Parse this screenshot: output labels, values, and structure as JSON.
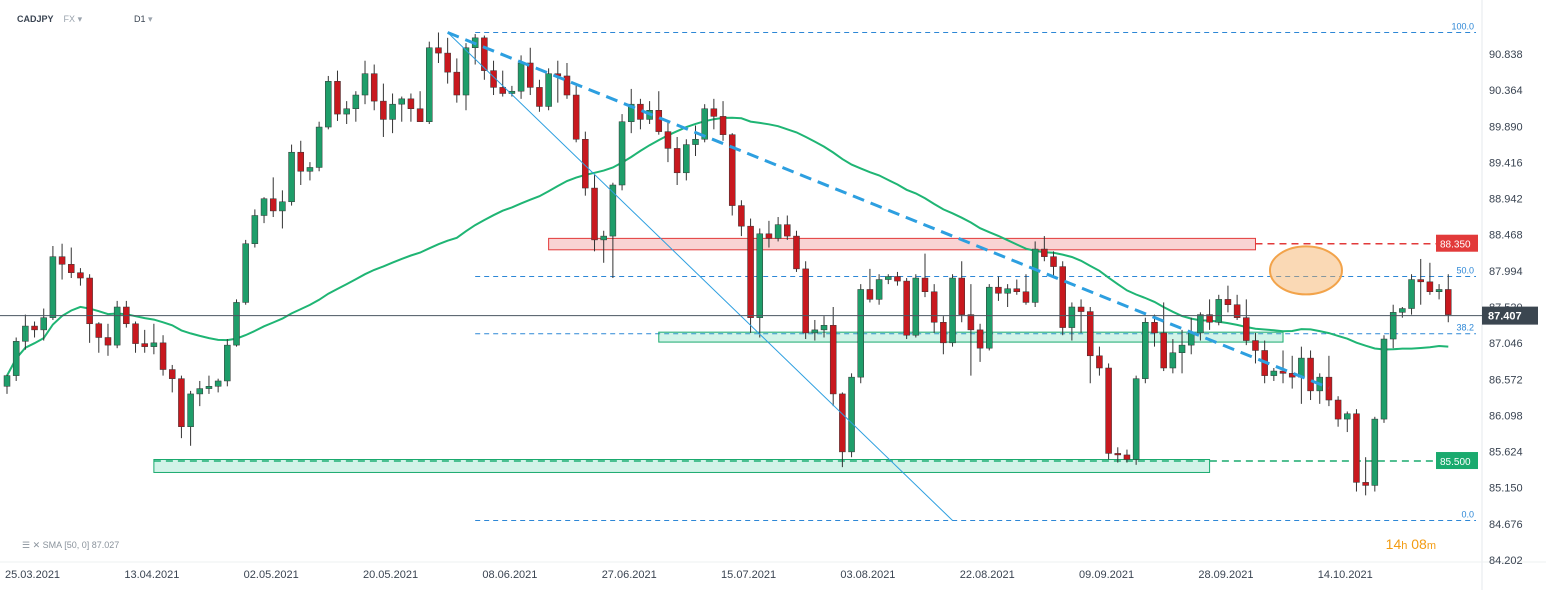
{
  "header": {
    "symbol": "CADJPY",
    "market": "FX",
    "timeframe": "D1"
  },
  "indicator": {
    "name": "SMA",
    "params": "[50, 0]",
    "value": "87.027"
  },
  "timer": {
    "hours": "14",
    "hours_unit": "h",
    "minutes": "08",
    "minutes_unit": "m"
  },
  "colors": {
    "bull": "#1e9e6a",
    "bear": "#c8181e",
    "sma": "#1fb574",
    "trend": "#2d9fe0",
    "fib": "#2d87d6",
    "resistance": "#e23a3a",
    "support": "#1aaa6e",
    "highlight": "#f2a34a"
  },
  "chart_data": {
    "type": "candlestick",
    "ylim": [
      84.202,
      91.2
    ],
    "y_ticks": [
      "90.838",
      "90.364",
      "89.890",
      "89.416",
      "88.942",
      "88.468",
      "87.994",
      "87.520",
      "87.046",
      "86.572",
      "86.098",
      "85.624",
      "85.150",
      "84.676",
      "84.202"
    ],
    "x_ticks": [
      "25.03.2021",
      "13.04.2021",
      "02.05.2021",
      "20.05.2021",
      "08.06.2021",
      "27.06.2021",
      "15.07.2021",
      "03.08.2021",
      "22.08.2021",
      "09.09.2021",
      "28.09.2021",
      "14.10.2021"
    ],
    "x_tick_index": [
      0,
      13,
      26,
      39,
      52,
      65,
      78,
      91,
      104,
      117,
      130,
      143
    ],
    "current_price": "87.407",
    "levels": [
      {
        "label": "88.350",
        "value": 88.35,
        "kind": "resistance"
      },
      {
        "label": "85.500",
        "value": 85.5,
        "kind": "support"
      }
    ],
    "fibonacci": [
      {
        "label": "100.0",
        "value": 91.12
      },
      {
        "label": "50.0",
        "value": 87.92
      },
      {
        "label": "38.2",
        "value": 87.17
      },
      {
        "label": "0.0",
        "value": 84.72
      }
    ],
    "zones": [
      {
        "name": "resistance-zone",
        "from_index": 59,
        "to_index": 136,
        "low": 88.27,
        "high": 88.42
      },
      {
        "name": "support-zone-middle",
        "from_index": 71,
        "to_index": 139,
        "low": 87.06,
        "high": 87.19
      },
      {
        "name": "support-zone-lower",
        "from_index": 16,
        "to_index": 131,
        "low": 85.35,
        "high": 85.52
      }
    ],
    "trendline_dashed": {
      "from": [
        48,
        91.12
      ],
      "to": [
        144,
        86.46
      ]
    },
    "trendline_thin": {
      "from": [
        48,
        91.12
      ],
      "to": [
        103,
        84.72
      ]
    },
    "candles": [
      [
        86.48,
        86.63,
        86.38,
        86.62
      ],
      [
        86.62,
        87.12,
        86.55,
        87.07
      ],
      [
        87.07,
        87.42,
        86.96,
        87.27
      ],
      [
        87.27,
        87.33,
        87.12,
        87.22
      ],
      [
        87.22,
        87.5,
        87.08,
        87.38
      ],
      [
        87.38,
        88.32,
        87.35,
        88.18
      ],
      [
        88.18,
        88.35,
        87.88,
        88.08
      ],
      [
        88.08,
        88.3,
        87.9,
        87.97
      ],
      [
        87.97,
        88.03,
        87.8,
        87.9
      ],
      [
        87.9,
        87.95,
        87.05,
        87.3
      ],
      [
        87.3,
        87.32,
        86.92,
        87.12
      ],
      [
        87.12,
        87.3,
        86.88,
        87.02
      ],
      [
        87.02,
        87.6,
        86.98,
        87.52
      ],
      [
        87.52,
        87.6,
        87.25,
        87.3
      ],
      [
        87.3,
        87.33,
        86.92,
        87.04
      ],
      [
        87.04,
        87.22,
        86.92,
        87.0
      ],
      [
        87.0,
        87.3,
        86.9,
        87.05
      ],
      [
        87.05,
        87.15,
        86.62,
        86.7
      ],
      [
        86.7,
        86.76,
        86.4,
        86.58
      ],
      [
        86.58,
        86.62,
        85.8,
        85.95
      ],
      [
        85.95,
        86.42,
        85.7,
        86.38
      ],
      [
        86.38,
        86.55,
        86.22,
        86.45
      ],
      [
        86.45,
        86.62,
        86.38,
        86.48
      ],
      [
        86.48,
        86.58,
        86.4,
        86.55
      ],
      [
        86.55,
        87.1,
        86.48,
        87.02
      ],
      [
        87.02,
        87.62,
        87.0,
        87.58
      ],
      [
        87.58,
        88.4,
        87.55,
        88.35
      ],
      [
        88.35,
        88.8,
        88.3,
        88.72
      ],
      [
        88.72,
        88.96,
        88.62,
        88.94
      ],
      [
        88.94,
        89.22,
        88.7,
        88.78
      ],
      [
        88.78,
        89.05,
        88.55,
        88.9
      ],
      [
        88.9,
        89.65,
        88.85,
        89.55
      ],
      [
        89.55,
        89.7,
        89.12,
        89.3
      ],
      [
        89.3,
        89.42,
        89.18,
        89.35
      ],
      [
        89.35,
        89.95,
        89.3,
        89.88
      ],
      [
        89.88,
        90.55,
        89.85,
        90.48
      ],
      [
        90.48,
        90.62,
        89.96,
        90.05
      ],
      [
        90.05,
        90.22,
        89.92,
        90.12
      ],
      [
        90.12,
        90.35,
        89.95,
        90.3
      ],
      [
        90.3,
        90.75,
        90.18,
        90.58
      ],
      [
        90.58,
        90.7,
        90.1,
        90.22
      ],
      [
        90.22,
        90.45,
        89.75,
        89.98
      ],
      [
        89.98,
        90.32,
        89.8,
        90.18
      ],
      [
        90.18,
        90.28,
        89.95,
        90.25
      ],
      [
        90.25,
        90.32,
        89.95,
        90.12
      ],
      [
        90.12,
        90.35,
        89.95,
        89.95
      ],
      [
        89.95,
        91.0,
        89.92,
        90.92
      ],
      [
        90.92,
        91.12,
        90.72,
        90.85
      ],
      [
        90.85,
        91.05,
        90.45,
        90.6
      ],
      [
        90.6,
        90.78,
        90.2,
        90.3
      ],
      [
        90.3,
        90.98,
        90.1,
        90.92
      ],
      [
        90.92,
        91.1,
        90.7,
        91.05
      ],
      [
        91.05,
        91.08,
        90.5,
        90.62
      ],
      [
        90.62,
        90.75,
        90.3,
        90.4
      ],
      [
        90.4,
        90.62,
        90.28,
        90.32
      ],
      [
        90.32,
        90.42,
        90.28,
        90.35
      ],
      [
        90.35,
        90.82,
        90.25,
        90.72
      ],
      [
        90.72,
        90.92,
        90.3,
        90.4
      ],
      [
        90.4,
        90.5,
        90.08,
        90.15
      ],
      [
        90.15,
        90.65,
        90.1,
        90.58
      ],
      [
        90.58,
        90.75,
        90.2,
        90.55
      ],
      [
        90.55,
        90.72,
        90.25,
        90.3
      ],
      [
        90.3,
        90.42,
        89.68,
        89.72
      ],
      [
        89.72,
        89.82,
        88.98,
        89.08
      ],
      [
        89.08,
        89.25,
        88.25,
        88.4
      ],
      [
        88.4,
        88.52,
        88.1,
        88.45
      ],
      [
        88.45,
        89.15,
        87.9,
        89.12
      ],
      [
        89.12,
        90.05,
        89.05,
        89.95
      ],
      [
        89.95,
        90.38,
        89.8,
        90.18
      ],
      [
        90.18,
        90.25,
        89.85,
        89.98
      ],
      [
        89.98,
        90.22,
        89.92,
        90.1
      ],
      [
        90.1,
        90.35,
        89.78,
        89.82
      ],
      [
        89.82,
        89.95,
        89.42,
        89.6
      ],
      [
        89.6,
        89.75,
        89.12,
        89.28
      ],
      [
        89.28,
        89.72,
        89.18,
        89.65
      ],
      [
        89.65,
        89.9,
        89.5,
        89.72
      ],
      [
        89.72,
        90.18,
        89.68,
        90.12
      ],
      [
        90.12,
        90.25,
        89.85,
        90.02
      ],
      [
        90.02,
        90.22,
        89.7,
        89.78
      ],
      [
        89.78,
        89.8,
        88.72,
        88.85
      ],
      [
        88.85,
        88.92,
        88.45,
        88.58
      ],
      [
        88.58,
        88.68,
        87.18,
        87.38
      ],
      [
        87.38,
        88.55,
        87.12,
        88.48
      ],
      [
        88.48,
        88.65,
        88.3,
        88.42
      ],
      [
        88.42,
        88.7,
        88.38,
        88.6
      ],
      [
        88.6,
        88.72,
        88.4,
        88.45
      ],
      [
        88.45,
        88.52,
        87.98,
        88.02
      ],
      [
        88.02,
        88.12,
        87.1,
        87.18
      ],
      [
        87.18,
        87.35,
        87.08,
        87.22
      ],
      [
        87.22,
        87.4,
        87.12,
        87.28
      ],
      [
        87.28,
        87.52,
        86.22,
        86.38
      ],
      [
        86.38,
        86.4,
        85.42,
        85.62
      ],
      [
        85.62,
        86.65,
        85.55,
        86.6
      ],
      [
        86.6,
        87.82,
        86.52,
        87.75
      ],
      [
        87.75,
        88.02,
        87.58,
        87.62
      ],
      [
        87.62,
        87.95,
        87.55,
        87.88
      ],
      [
        87.88,
        87.95,
        87.82,
        87.92
      ],
      [
        87.92,
        87.98,
        87.8,
        87.86
      ],
      [
        87.86,
        87.9,
        87.1,
        87.15
      ],
      [
        87.15,
        87.95,
        87.12,
        87.9
      ],
      [
        87.9,
        88.22,
        87.65,
        87.72
      ],
      [
        87.72,
        87.82,
        87.18,
        87.32
      ],
      [
        87.32,
        87.4,
        86.9,
        87.05
      ],
      [
        87.05,
        87.95,
        87.0,
        87.9
      ],
      [
        87.9,
        88.12,
        87.32,
        87.42
      ],
      [
        87.42,
        87.82,
        86.62,
        87.22
      ],
      [
        87.22,
        87.3,
        86.8,
        86.98
      ],
      [
        86.98,
        87.82,
        86.95,
        87.78
      ],
      [
        87.78,
        87.92,
        87.6,
        87.7
      ],
      [
        87.7,
        87.82,
        87.52,
        87.76
      ],
      [
        87.76,
        87.88,
        87.68,
        87.72
      ],
      [
        87.72,
        87.95,
        87.55,
        87.58
      ],
      [
        87.58,
        88.38,
        87.52,
        88.28
      ],
      [
        88.28,
        88.45,
        88.12,
        88.18
      ],
      [
        88.18,
        88.25,
        87.9,
        88.05
      ],
      [
        88.05,
        88.12,
        87.15,
        87.25
      ],
      [
        87.25,
        87.58,
        87.08,
        87.52
      ],
      [
        87.52,
        87.62,
        87.18,
        87.46
      ],
      [
        87.46,
        87.52,
        86.52,
        86.88
      ],
      [
        86.88,
        87.0,
        86.62,
        86.72
      ],
      [
        86.72,
        86.78,
        85.52,
        85.6
      ],
      [
        85.6,
        85.68,
        85.48,
        85.58
      ],
      [
        85.58,
        85.65,
        85.48,
        85.52
      ],
      [
        85.52,
        86.62,
        85.45,
        86.58
      ],
      [
        86.58,
        87.38,
        86.52,
        87.32
      ],
      [
        87.32,
        87.42,
        87.0,
        87.18
      ],
      [
        87.18,
        87.58,
        86.68,
        86.72
      ],
      [
        86.72,
        87.1,
        86.65,
        86.92
      ],
      [
        86.92,
        87.22,
        86.65,
        87.02
      ],
      [
        87.02,
        87.38,
        86.9,
        87.18
      ],
      [
        87.18,
        87.45,
        87.08,
        87.42
      ],
      [
        87.42,
        87.62,
        87.22,
        87.32
      ],
      [
        87.32,
        87.68,
        87.28,
        87.62
      ],
      [
        87.62,
        87.8,
        87.45,
        87.55
      ],
      [
        87.55,
        87.68,
        87.35,
        87.38
      ],
      [
        87.38,
        87.62,
        87.02,
        87.08
      ],
      [
        87.08,
        87.18,
        86.78,
        86.95
      ],
      [
        86.95,
        87.08,
        86.52,
        86.62
      ],
      [
        86.62,
        86.72,
        86.55,
        86.68
      ],
      [
        86.68,
        86.95,
        86.52,
        86.65
      ],
      [
        86.65,
        86.88,
        86.45,
        86.6
      ],
      [
        86.6,
        87.0,
        86.25,
        86.85
      ],
      [
        86.85,
        86.95,
        86.3,
        86.42
      ],
      [
        86.42,
        86.65,
        86.25,
        86.6
      ],
      [
        86.6,
        86.88,
        86.22,
        86.3
      ],
      [
        86.3,
        86.35,
        85.95,
        86.05
      ],
      [
        86.05,
        86.15,
        85.88,
        86.12
      ],
      [
        86.12,
        86.18,
        85.1,
        85.22
      ],
      [
        85.22,
        85.55,
        85.05,
        85.18
      ],
      [
        85.18,
        86.08,
        85.1,
        86.05
      ],
      [
        86.05,
        87.15,
        86.0,
        87.1
      ],
      [
        87.1,
        87.55,
        86.98,
        87.45
      ],
      [
        87.45,
        87.52,
        87.38,
        87.5
      ],
      [
        87.5,
        87.95,
        87.42,
        87.88
      ],
      [
        87.88,
        88.15,
        87.55,
        87.85
      ],
      [
        87.85,
        88.1,
        87.68,
        87.72
      ],
      [
        87.72,
        87.82,
        87.62,
        87.75
      ],
      [
        87.75,
        87.95,
        87.32,
        87.42
      ]
    ]
  }
}
